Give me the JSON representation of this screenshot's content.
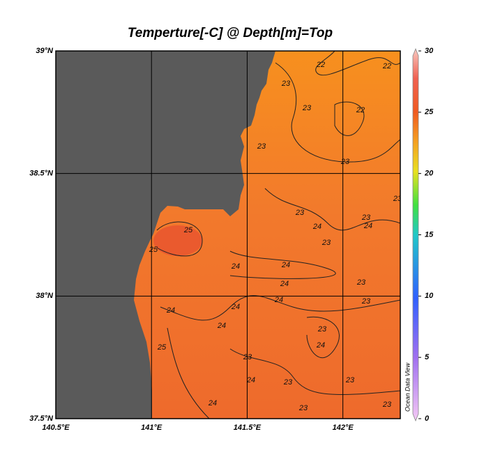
{
  "title": "Temperture[-C] @ Depth[m]=Top",
  "map": {
    "xlim": [
      140.5,
      142.3
    ],
    "ylim": [
      37.5,
      39
    ],
    "xticks": [
      {
        "value": 140.5,
        "label": "140.5°E"
      },
      {
        "value": 141,
        "label": "141°E"
      },
      {
        "value": 141.5,
        "label": "141.5°E"
      },
      {
        "value": 142,
        "label": "142°E"
      }
    ],
    "yticks": [
      {
        "value": 37.5,
        "label": "37.5°N"
      },
      {
        "value": 38,
        "label": "38°N"
      },
      {
        "value": 38.5,
        "label": "38.5°N"
      },
      {
        "value": 39,
        "label": "39°N"
      }
    ],
    "grid": true
  },
  "colorbar": {
    "range": [
      0,
      30
    ],
    "ticks": [
      0,
      5,
      10,
      15,
      20,
      25,
      30
    ]
  },
  "contour_labels": [
    22,
    22,
    23,
    23,
    22,
    23,
    23,
    23,
    24,
    23,
    24,
    23,
    25,
    25,
    23,
    24,
    24,
    24,
    23,
    24,
    24,
    24,
    23,
    24,
    23,
    24,
    25,
    23,
    24,
    23,
    24,
    23,
    23,
    23
  ],
  "watermark": "Ocean Data View"
}
